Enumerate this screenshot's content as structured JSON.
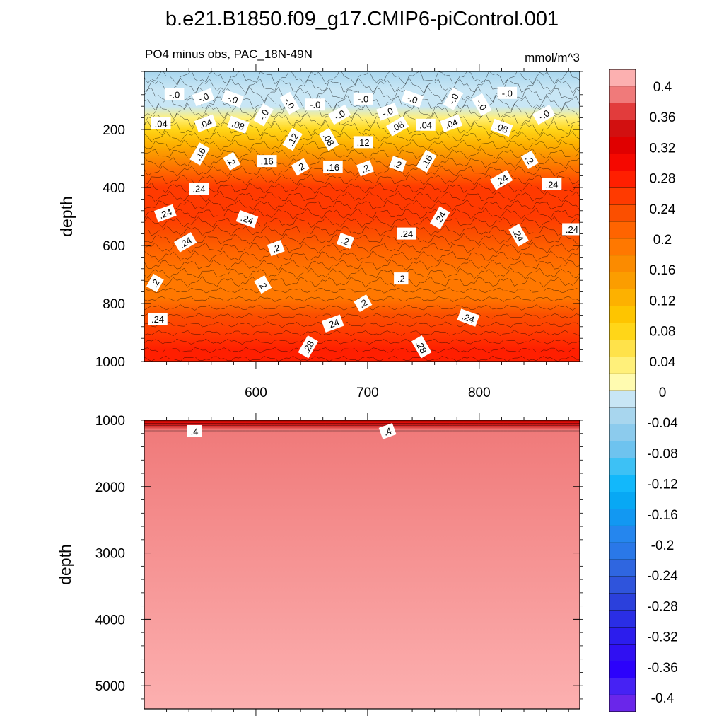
{
  "title": "b.e21.B1850.f09_g17.CMIP6-piControl.001",
  "subtitle_left": "PO4 minus obs, PAC_18N-49N",
  "subtitle_right": "mmol/m^3",
  "chart_data": [
    {
      "type": "heatmap",
      "panel": "upper",
      "ylabel": "depth",
      "xlim": [
        500,
        890
      ],
      "ylim": [
        0,
        1000
      ],
      "y_inverted": true,
      "x_ticks": [
        "600",
        "700",
        "800"
      ],
      "y_ticks": [
        "200",
        "400",
        "600",
        "800",
        "1000"
      ],
      "depth_profile": [
        {
          "depth": 0,
          "value": -0.03
        },
        {
          "depth": 60,
          "value": -0.02
        },
        {
          "depth": 120,
          "value": 0.0
        },
        {
          "depth": 160,
          "value": 0.03
        },
        {
          "depth": 200,
          "value": 0.07
        },
        {
          "depth": 250,
          "value": 0.12
        },
        {
          "depth": 300,
          "value": 0.18
        },
        {
          "depth": 350,
          "value": 0.22
        },
        {
          "depth": 400,
          "value": 0.25
        },
        {
          "depth": 450,
          "value": 0.27
        },
        {
          "depth": 500,
          "value": 0.26
        },
        {
          "depth": 560,
          "value": 0.24
        },
        {
          "depth": 620,
          "value": 0.21
        },
        {
          "depth": 700,
          "value": 0.19
        },
        {
          "depth": 780,
          "value": 0.2
        },
        {
          "depth": 840,
          "value": 0.23
        },
        {
          "depth": 900,
          "value": 0.26
        },
        {
          "depth": 960,
          "value": 0.28
        },
        {
          "depth": 1000,
          "value": 0.29
        }
      ],
      "contour_labels": [
        {
          "text": "-.0",
          "x": 527,
          "depth": 80
        },
        {
          "text": "-.0",
          "x": 553,
          "depth": 90
        },
        {
          "text": "-.0",
          "x": 579,
          "depth": 95
        },
        {
          "text": "-.0",
          "x": 607,
          "depth": 150
        },
        {
          "text": "-.0",
          "x": 630,
          "depth": 110
        },
        {
          "text": "-.0",
          "x": 653,
          "depth": 115
        },
        {
          "text": "-.0",
          "x": 675,
          "depth": 150
        },
        {
          "text": "-.0",
          "x": 696,
          "depth": 95
        },
        {
          "text": "-.0",
          "x": 718,
          "depth": 140
        },
        {
          "text": "-.0",
          "x": 740,
          "depth": 95
        },
        {
          "text": "-.0",
          "x": 777,
          "depth": 95
        },
        {
          "text": "-.0",
          "x": 802,
          "depth": 115
        },
        {
          "text": "-.0",
          "x": 825,
          "depth": 75
        },
        {
          "text": "-.0",
          "x": 858,
          "depth": 150
        },
        {
          "text": ".04",
          "x": 515,
          "depth": 180
        },
        {
          "text": ".04",
          "x": 555,
          "depth": 180
        },
        {
          "text": ".08",
          "x": 584,
          "depth": 185
        },
        {
          "text": ".12",
          "x": 633,
          "depth": 235
        },
        {
          "text": ".08",
          "x": 665,
          "depth": 235
        },
        {
          "text": ".12",
          "x": 696,
          "depth": 245
        },
        {
          "text": ".08",
          "x": 727,
          "depth": 190
        },
        {
          "text": ".04",
          "x": 752,
          "depth": 185
        },
        {
          "text": ".04",
          "x": 775,
          "depth": 180
        },
        {
          "text": ".08",
          "x": 820,
          "depth": 195
        },
        {
          "text": ".16",
          "x": 550,
          "depth": 285
        },
        {
          "text": ".2",
          "x": 578,
          "depth": 310
        },
        {
          "text": ".16",
          "x": 610,
          "depth": 310
        },
        {
          "text": ".2",
          "x": 640,
          "depth": 330
        },
        {
          "text": ".16",
          "x": 669,
          "depth": 330
        },
        {
          "text": ".2",
          "x": 698,
          "depth": 335
        },
        {
          "text": ".2",
          "x": 727,
          "depth": 320
        },
        {
          "text": ".16",
          "x": 753,
          "depth": 310
        },
        {
          "text": ".2",
          "x": 845,
          "depth": 305
        },
        {
          "text": ".24",
          "x": 549,
          "depth": 405
        },
        {
          "text": ".24",
          "x": 820,
          "depth": 375
        },
        {
          "text": ".24",
          "x": 865,
          "depth": 390
        },
        {
          "text": ".24",
          "x": 519,
          "depth": 490
        },
        {
          "text": ".24",
          "x": 592,
          "depth": 510
        },
        {
          "text": ".24",
          "x": 765,
          "depth": 505
        },
        {
          "text": ".24",
          "x": 835,
          "depth": 565
        },
        {
          "text": ".24",
          "x": 883,
          "depth": 545
        },
        {
          "text": ".24",
          "x": 537,
          "depth": 590
        },
        {
          "text": ".24",
          "x": 735,
          "depth": 560
        },
        {
          "text": ".2",
          "x": 618,
          "depth": 610
        },
        {
          "text": ".2",
          "x": 680,
          "depth": 585
        },
        {
          "text": ".2",
          "x": 510,
          "depth": 730
        },
        {
          "text": ".2",
          "x": 606,
          "depth": 735
        },
        {
          "text": ".2",
          "x": 730,
          "depth": 715
        },
        {
          "text": ".2",
          "x": 696,
          "depth": 800
        },
        {
          "text": ".24",
          "x": 512,
          "depth": 855
        },
        {
          "text": ".24",
          "x": 669,
          "depth": 870
        },
        {
          "text": ".24",
          "x": 790,
          "depth": 850
        },
        {
          "text": ".28",
          "x": 647,
          "depth": 950
        },
        {
          "text": ".28",
          "x": 748,
          "depth": 950
        }
      ]
    },
    {
      "type": "heatmap",
      "panel": "lower",
      "ylabel": "depth",
      "xlim": [
        500,
        890
      ],
      "ylim": [
        1000,
        5350
      ],
      "y_inverted": true,
      "y_ticks": [
        "1000",
        "2000",
        "3000",
        "4000",
        "5000"
      ],
      "depth_profile": [
        {
          "depth": 1000,
          "value": 0.3
        },
        {
          "depth": 1060,
          "value": 0.36
        },
        {
          "depth": 1150,
          "value": 0.4
        },
        {
          "depth": 5350,
          "value": 0.42
        }
      ],
      "contour_labels": [
        {
          "text": ".4",
          "x": 545,
          "depth": 1170
        },
        {
          "text": ".4",
          "x": 718,
          "depth": 1170
        }
      ]
    }
  ],
  "colorbar": {
    "labels": [
      "0.4",
      "0.36",
      "0.32",
      "0.28",
      "0.24",
      "0.2",
      "0.16",
      "0.12",
      "0.08",
      "0.04",
      "0",
      "-0.04",
      "-0.08",
      "-0.12",
      "-0.16",
      "-0.2",
      "-0.24",
      "-0.28",
      "-0.32",
      "-0.36",
      "-0.4"
    ],
    "colors": [
      "#fcb0b0",
      "#f07a7a",
      "#e23c3c",
      "#d21010",
      "#e00000",
      "#f50800",
      "#ff1f00",
      "#ff3a00",
      "#fb4f00",
      "#ff6400",
      "#ff7800",
      "#fb8b00",
      "#fb9d00",
      "#fdb100",
      "#fec500",
      "#ffd618",
      "#ffe24a",
      "#fff07a",
      "#fffbb0",
      "#c8e6f5",
      "#a8d6ee",
      "#8ccbed",
      "#6ec3ef",
      "#3dc1f5",
      "#12b8fb",
      "#08a8f4",
      "#1298f2",
      "#2586ee",
      "#2a78e8",
      "#2f66e0",
      "#2f54dc",
      "#2b40dc",
      "#2a2ee5",
      "#2c1ded",
      "#3010f2",
      "#2c02fb",
      "#4622f4",
      "#6a26ea"
    ]
  }
}
